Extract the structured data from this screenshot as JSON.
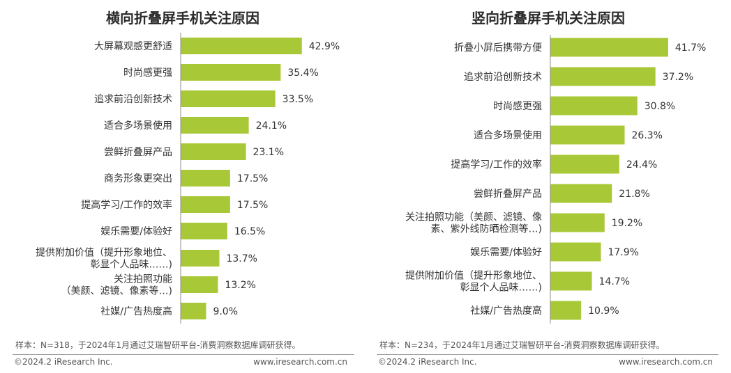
{
  "colors": {
    "bar": "#a8c837",
    "axis": "#8c8c8c",
    "text": "#333333"
  },
  "chart_data": [
    {
      "type": "bar",
      "orientation": "horizontal",
      "title": "横向折叠屏手机关注原因",
      "categories": [
        [
          "大屏幕观感更舒适"
        ],
        [
          "时尚感更强"
        ],
        [
          "追求前沿创新技术"
        ],
        [
          "适合多场景使用"
        ],
        [
          "尝鲜折叠屏产品"
        ],
        [
          "商务形象更突出"
        ],
        [
          "提高学习/工作的效率"
        ],
        [
          "娱乐需要/体验好"
        ],
        [
          "提供附加价值（提升形象地位、",
          "彰显个人品味……)"
        ],
        [
          "关注拍照功能",
          "（美颜、滤镜、像素等…)"
        ],
        [
          "社媒/广告热度高"
        ]
      ],
      "values": [
        42.9,
        35.4,
        33.5,
        24.1,
        23.1,
        17.5,
        17.5,
        16.5,
        13.7,
        13.2,
        9.0
      ],
      "value_labels": [
        "42.9%",
        "35.4%",
        "33.5%",
        "24.1%",
        "23.1%",
        "17.5%",
        "17.5%",
        "16.5%",
        "13.7%",
        "13.2%",
        "9.0%"
      ],
      "unit": "%",
      "xlim": [
        0,
        55
      ],
      "note": "样本：N=318，于2024年1月通过艾瑞智研平台-消费洞察数据库调研获得。"
    },
    {
      "type": "bar",
      "orientation": "horizontal",
      "title": "竖向折叠屏手机关注原因",
      "categories": [
        [
          "折叠小屏后携带方便"
        ],
        [
          "追求前沿创新技术"
        ],
        [
          "时尚感更强"
        ],
        [
          "适合多场景使用"
        ],
        [
          "提高学习/工作的效率"
        ],
        [
          "尝鲜折叠屏产品"
        ],
        [
          "关注拍照功能（美颜、滤镜、像",
          "素、紫外线防晒检测等…)"
        ],
        [
          "娱乐需要/体验好"
        ],
        [
          "提供附加价值（提升形象地位、",
          "彰显个人品味……)"
        ],
        [
          "社媒/广告热度高"
        ]
      ],
      "values": [
        41.7,
        37.2,
        30.8,
        26.3,
        24.4,
        21.8,
        19.2,
        17.9,
        14.7,
        10.9
      ],
      "value_labels": [
        "41.7%",
        "37.2%",
        "30.8%",
        "26.3%",
        "24.4%",
        "21.8%",
        "19.2%",
        "17.9%",
        "14.7%",
        "10.9%"
      ],
      "unit": "%",
      "xlim": [
        0,
        55
      ],
      "note": "样本：N=234，于2024年1月通过艾瑞智研平台-消费洞察数据库调研获得。"
    }
  ],
  "footer": {
    "left": {
      "copyright": "©2024.2 iResearch Inc.",
      "site": "www.iresearch.com.cn"
    },
    "right": {
      "copyright": "©2024.2 iResearch Inc.",
      "site": "www.iresearch.com.cn"
    }
  }
}
